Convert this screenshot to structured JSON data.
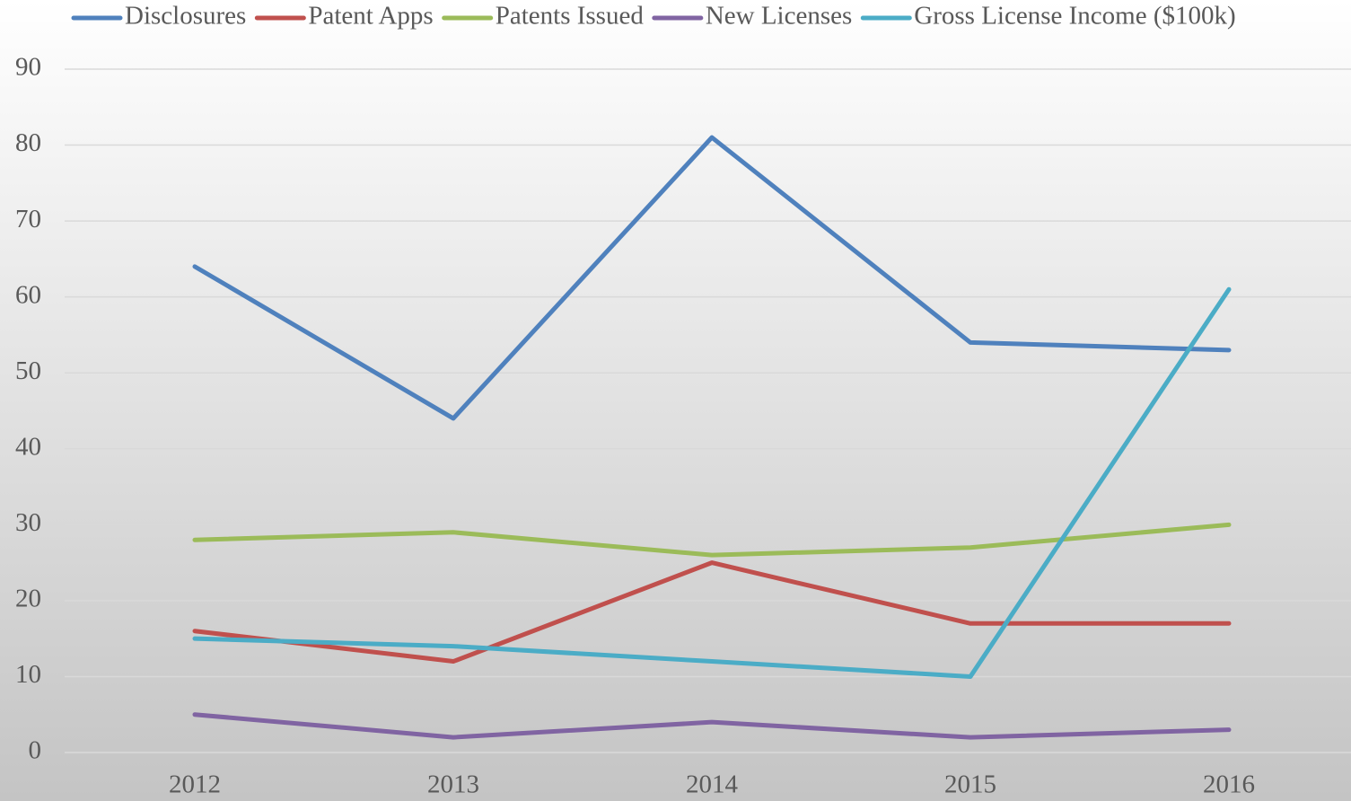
{
  "chart_data": {
    "type": "line",
    "categories": [
      "2012",
      "2013",
      "2014",
      "2015",
      "2016"
    ],
    "series": [
      {
        "name": "Disclosures",
        "color": "#4f81bd",
        "values": [
          64,
          44,
          81,
          54,
          53
        ]
      },
      {
        "name": "Patent Apps",
        "color": "#c0504d",
        "values": [
          16,
          12,
          25,
          17,
          17
        ]
      },
      {
        "name": "Patents Issued",
        "color": "#9bbb59",
        "values": [
          28,
          29,
          26,
          27,
          30
        ]
      },
      {
        "name": "New Licenses",
        "color": "#8064a2",
        "values": [
          5,
          2,
          4,
          2,
          3
        ]
      },
      {
        "name": "Gross License Income ($100k)",
        "color": "#4bacc6",
        "values": [
          15,
          14,
          12,
          10,
          61
        ]
      }
    ],
    "ylim": [
      0,
      90
    ],
    "yticks": [
      0,
      10,
      20,
      30,
      40,
      50,
      60,
      70,
      80,
      90
    ],
    "grid": true,
    "legend": "top"
  }
}
